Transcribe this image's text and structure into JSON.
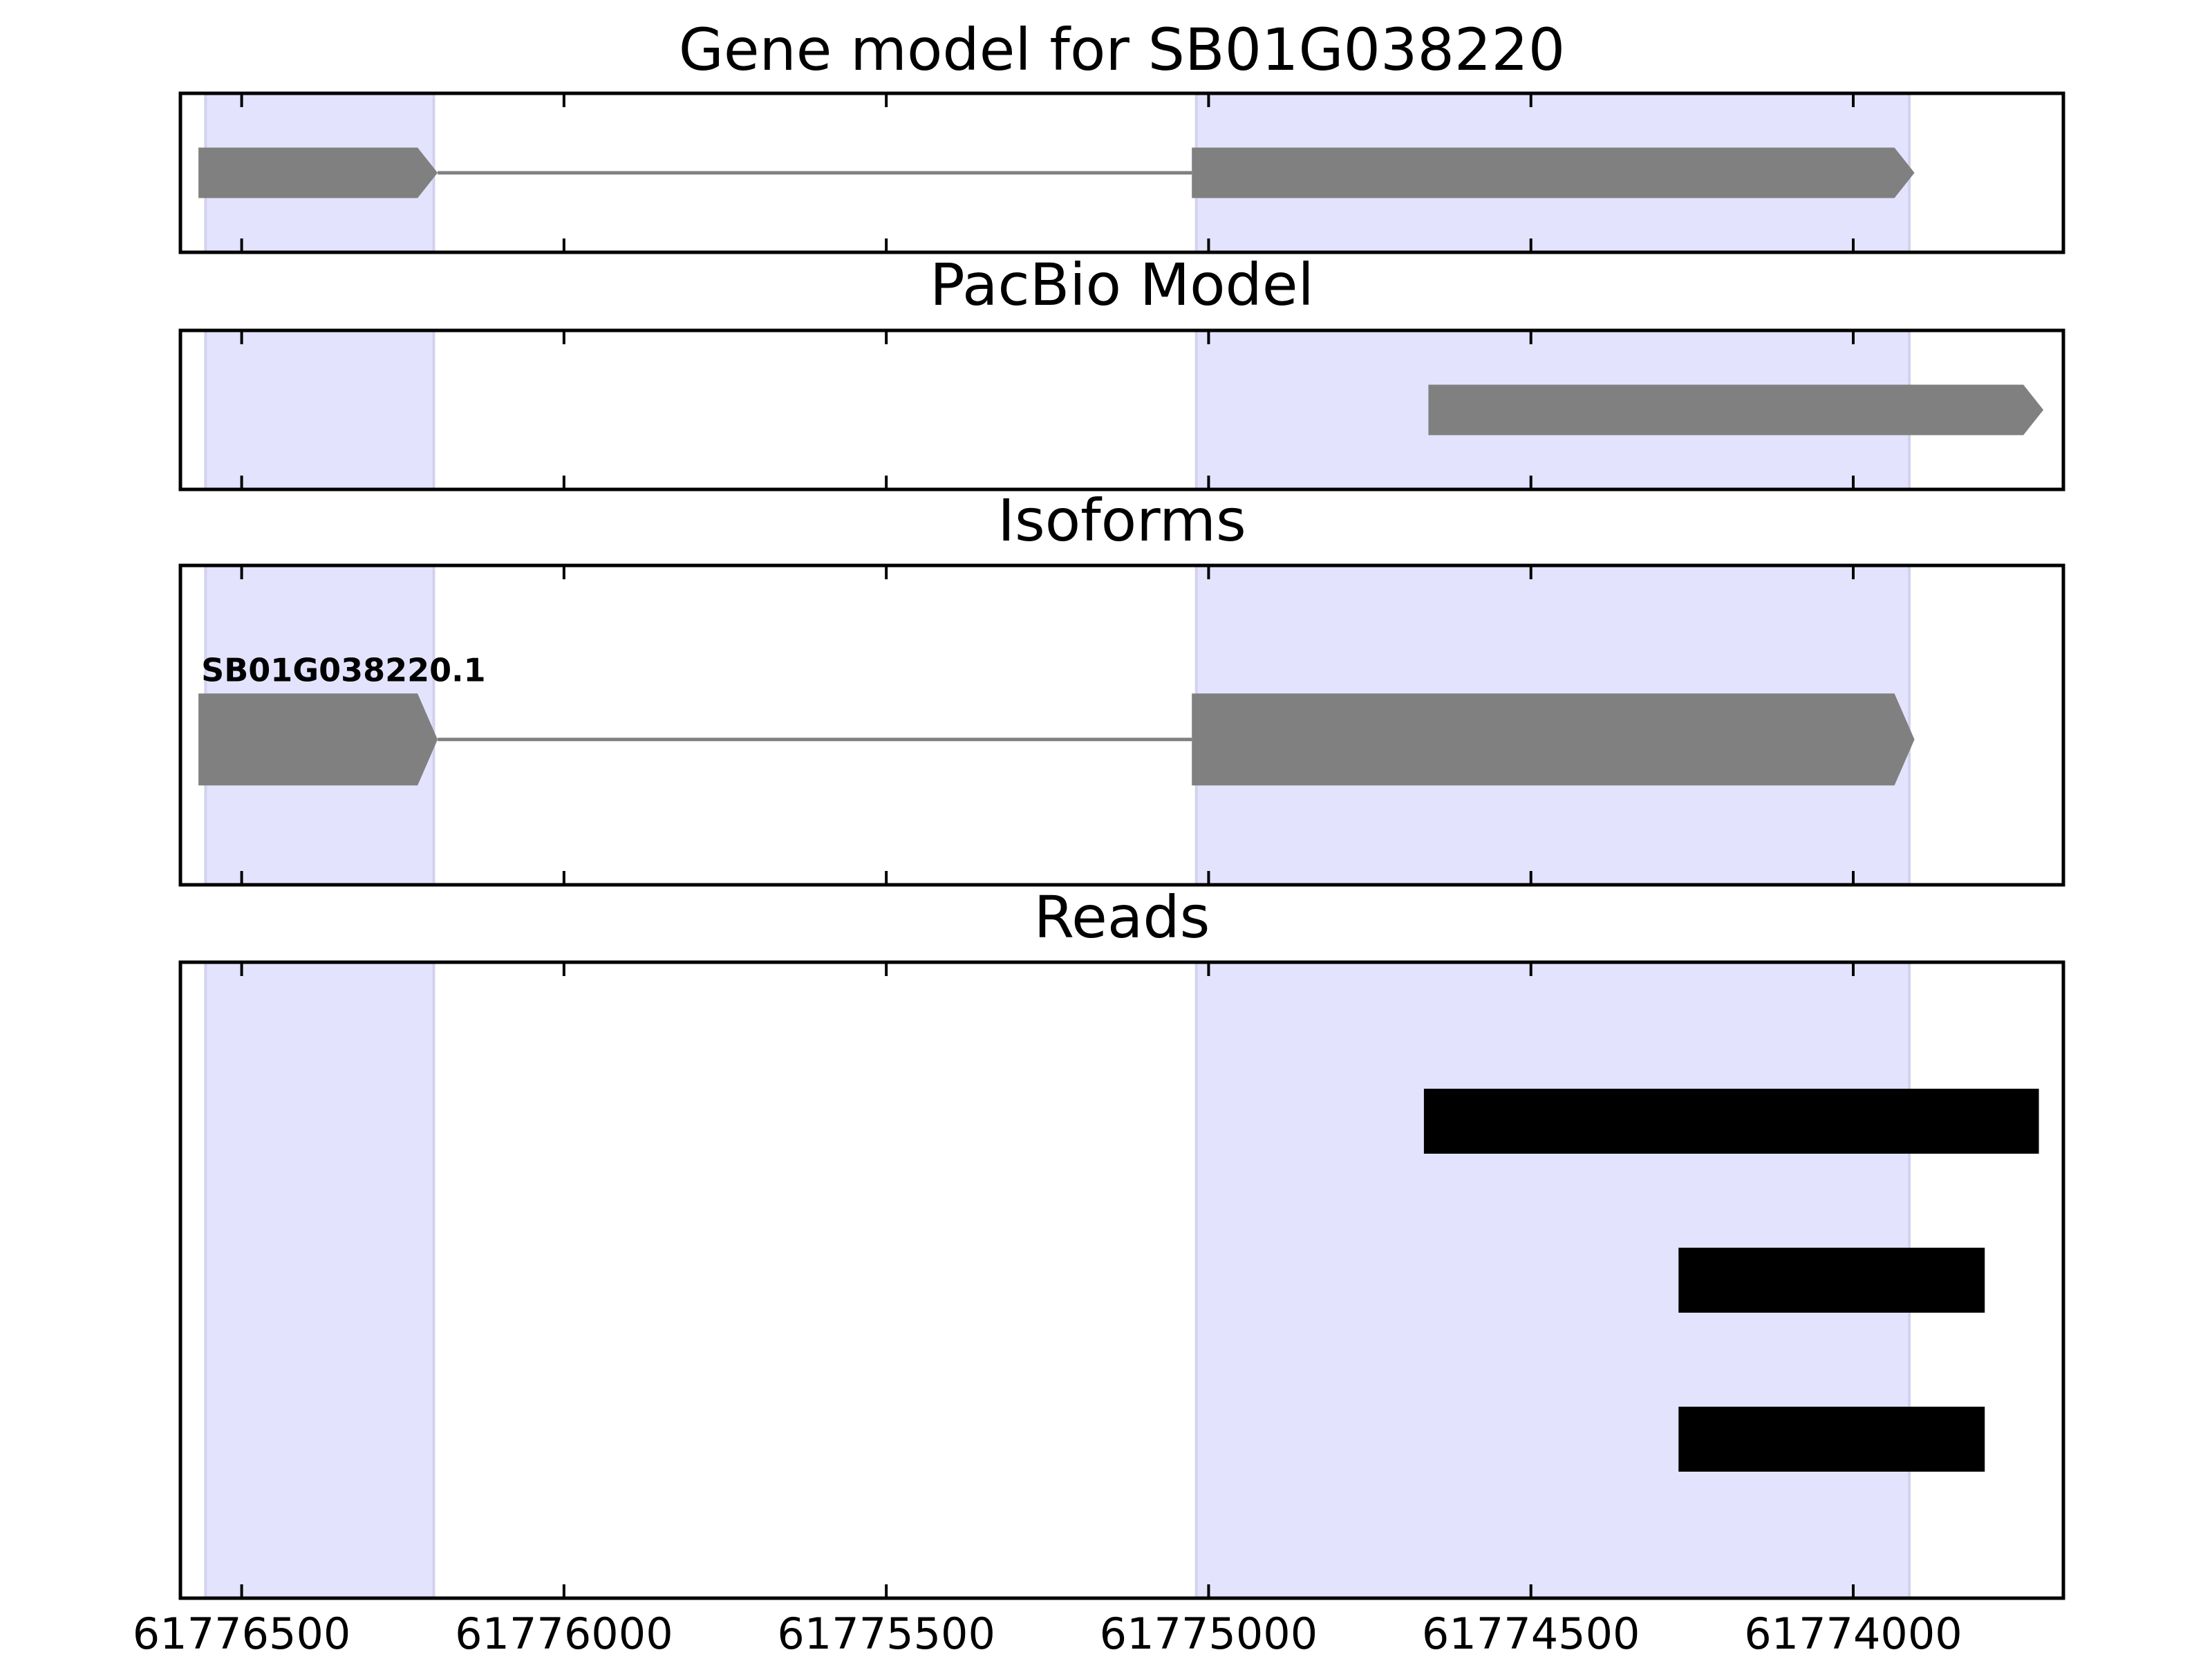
{
  "chart_data": {
    "type": "gene_tracks",
    "xlim": [
      61776595,
      61773674
    ],
    "xticks": [
      61776500,
      61776000,
      61775500,
      61775000,
      61774500,
      61774000
    ],
    "highlights": [
      [
        61776556,
        61776202
      ],
      [
        61775019,
        61773913
      ]
    ],
    "highlight_color": "#e3e3fd",
    "panels": [
      {
        "title": "Gene model for SB01G038220",
        "color": "#808080",
        "strand": "-",
        "transcripts": [
          {
            "exons": [
              {
                "start": 61776567,
                "end": 61776196
              },
              {
                "start": 61775026,
                "end": 61773905
              }
            ]
          }
        ]
      },
      {
        "title": "PacBio Model",
        "color": "#808080",
        "strand": "-",
        "transcripts": [
          {
            "exons": [
              {
                "start": 61774659,
                "end": 61773705
              }
            ]
          }
        ]
      },
      {
        "title": "Isoforms",
        "color": "#808080",
        "strand": "-",
        "transcripts": [
          {
            "label": "SB01G038220.1",
            "exons": [
              {
                "start": 61776567,
                "end": 61776196
              },
              {
                "start": 61775026,
                "end": 61773905
              }
            ]
          }
        ]
      },
      {
        "title": "Reads",
        "color": "#000000",
        "transcripts": [
          {
            "exons": [
              {
                "start": 61774666,
                "end": 61773712
              }
            ]
          },
          {
            "exons": [
              {
                "start": 61774271,
                "end": 61773796
              }
            ]
          },
          {
            "exons": [
              {
                "start": 61774271,
                "end": 61773796
              }
            ]
          }
        ]
      }
    ]
  }
}
